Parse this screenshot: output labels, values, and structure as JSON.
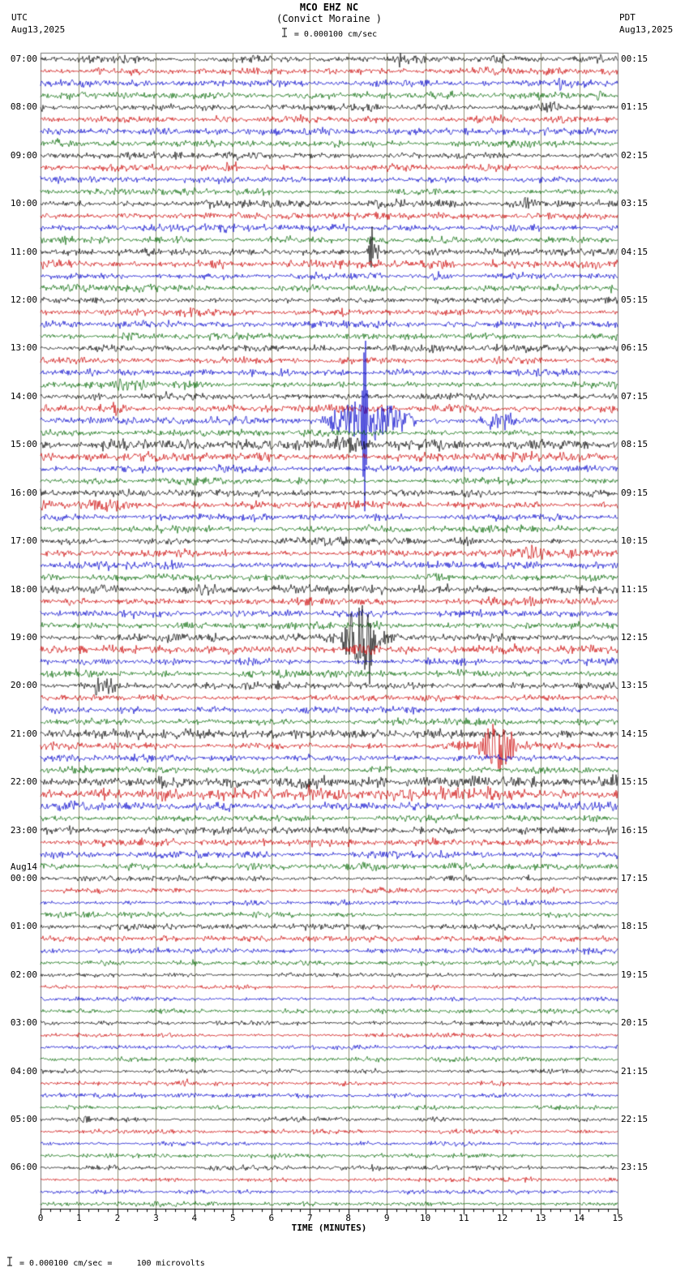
{
  "header": {
    "title": "MCO EHZ NC",
    "subtitle": "(Convict Moraine )",
    "left_tz": "UTC",
    "left_date": "Aug13,2025",
    "right_tz": "PDT",
    "right_date": "Aug13,2025",
    "scale_text": " = 0.000100 cm/sec"
  },
  "footer": {
    "text": " = 0.000100 cm/sec =     100 microvolts"
  },
  "chart_data": {
    "type": "line",
    "subtype": "helicorder-seismogram",
    "title": "MCO EHZ NC (Convict Moraine )",
    "xlabel": "TIME (MINUTES)",
    "x_range": [
      0,
      15
    ],
    "x_ticks": [
      "0",
      "1",
      "2",
      "3",
      "4",
      "5",
      "6",
      "7",
      "8",
      "9",
      "10",
      "11",
      "12",
      "13",
      "14",
      "15"
    ],
    "minutes_per_line": 15,
    "traces_per_hour": 4,
    "rows_total": 96,
    "trace_colors": [
      "#000000",
      "#cc0000",
      "#0000cc",
      "#006600"
    ],
    "grid_color": "#8f8f73",
    "axis_color": "#000000",
    "border_color": "#777777",
    "hours": [
      {
        "utc": "07:00",
        "pdt": "00:15"
      },
      {
        "utc": "08:00",
        "pdt": "01:15"
      },
      {
        "utc": "09:00",
        "pdt": "02:15"
      },
      {
        "utc": "10:00",
        "pdt": "03:15"
      },
      {
        "utc": "11:00",
        "pdt": "04:15"
      },
      {
        "utc": "12:00",
        "pdt": "05:15"
      },
      {
        "utc": "13:00",
        "pdt": "06:15"
      },
      {
        "utc": "14:00",
        "pdt": "07:15"
      },
      {
        "utc": "15:00",
        "pdt": "08:15"
      },
      {
        "utc": "16:00",
        "pdt": "09:15"
      },
      {
        "utc": "17:00",
        "pdt": "10:15"
      },
      {
        "utc": "18:00",
        "pdt": "11:15"
      },
      {
        "utc": "19:00",
        "pdt": "12:15"
      },
      {
        "utc": "20:00",
        "pdt": "13:15"
      },
      {
        "utc": "21:00",
        "pdt": "14:15"
      },
      {
        "utc": "22:00",
        "pdt": "15:15"
      },
      {
        "utc": "23:00",
        "pdt": "16:15"
      },
      {
        "utc": "00:00",
        "pdt": "17:15",
        "date": "Aug14"
      },
      {
        "utc": "01:00",
        "pdt": "18:15"
      },
      {
        "utc": "02:00",
        "pdt": "19:15"
      },
      {
        "utc": "03:00",
        "pdt": "20:15"
      },
      {
        "utc": "04:00",
        "pdt": "21:15"
      },
      {
        "utc": "05:00",
        "pdt": "22:15"
      },
      {
        "utc": "06:00",
        "pdt": "23:15"
      }
    ],
    "noise": {
      "default": 2.3,
      "night": 1.8,
      "night_start_row": 68,
      "late": 1.5,
      "late_start_row": 76,
      "overrides": {
        "17": 2.8,
        "32": 3.2,
        "33": 2.9,
        "44": 3.0,
        "45": 2.7,
        "49": 3.0,
        "56": 3.0,
        "60": 4.0,
        "61": 4.2,
        "62": 3.0
      }
    },
    "events": [
      {
        "row": 0,
        "t0": 1.45,
        "t1": 1.85,
        "amp": 6,
        "shape": "burst"
      },
      {
        "row": 0,
        "t0": 9.2,
        "t1": 9.45,
        "amp": 5,
        "shape": "burst"
      },
      {
        "row": 0,
        "t0": 11.6,
        "t1": 12.1,
        "amp": 6,
        "shape": "burst"
      },
      {
        "row": 1,
        "t0": 1.4,
        "t1": 1.8,
        "amp": 5,
        "shape": "burst"
      },
      {
        "row": 2,
        "t0": 1.4,
        "t1": 1.8,
        "amp": 4,
        "shape": "burst"
      },
      {
        "row": 2,
        "t0": 13.3,
        "t1": 13.7,
        "amp": 5,
        "shape": "burst"
      },
      {
        "row": 3,
        "t0": 14.4,
        "t1": 14.65,
        "amp": 7,
        "shape": "burst"
      },
      {
        "row": 4,
        "t0": 12.9,
        "t1": 13.6,
        "amp": 7,
        "shape": "burst"
      },
      {
        "row": 7,
        "t0": 0.15,
        "t1": 0.8,
        "amp": 5,
        "shape": "burst"
      },
      {
        "row": 8,
        "t0": 4.7,
        "t1": 5.1,
        "amp": 5,
        "shape": "burst"
      },
      {
        "row": 9,
        "t0": 4.7,
        "t1": 5.2,
        "amp": 6,
        "shape": "burst"
      },
      {
        "row": 12,
        "t0": 4.0,
        "t1": 4.6,
        "amp": 4,
        "shape": "burst"
      },
      {
        "row": 12,
        "t0": 8.4,
        "t1": 9.0,
        "amp": 4,
        "shape": "burst"
      },
      {
        "row": 12,
        "t0": 12.2,
        "t1": 13.0,
        "amp": 5,
        "shape": "burst"
      },
      {
        "row": 15,
        "t0": 0.2,
        "t1": 1.0,
        "amp": 4,
        "shape": "burst"
      },
      {
        "row": 16,
        "t0": 8.45,
        "t1": 8.85,
        "amp": 14,
        "shape": "burst"
      },
      {
        "row": 16,
        "t0": 8.55,
        "t1": 8.68,
        "amp": 24,
        "shape": "spike"
      },
      {
        "row": 17,
        "t0": 9.6,
        "t1": 10.9,
        "amp": 4,
        "shape": "burst"
      },
      {
        "row": 21,
        "t0": 7.7,
        "t1": 8.1,
        "amp": 5,
        "shape": "burst"
      },
      {
        "row": 23,
        "t0": 2.1,
        "t1": 2.7,
        "amp": 5,
        "shape": "burst"
      },
      {
        "row": 27,
        "t0": 1.9,
        "t1": 2.7,
        "amp": 6,
        "shape": "burst"
      },
      {
        "row": 29,
        "t0": 1.8,
        "t1": 2.3,
        "amp": 6,
        "shape": "burst"
      },
      {
        "row": 30,
        "t0": 7.3,
        "t1": 9.8,
        "amp": 24,
        "shape": "burst"
      },
      {
        "row": 30,
        "t0": 8.33,
        "t1": 8.5,
        "amp": 135,
        "shape": "spike"
      },
      {
        "row": 30,
        "t0": 11.35,
        "t1": 12.45,
        "amp": 11,
        "shape": "burst"
      },
      {
        "row": 32,
        "t0": 1.5,
        "t1": 2.35,
        "amp": 9,
        "shape": "burst"
      },
      {
        "row": 32,
        "t0": 7.3,
        "t1": 8.75,
        "amp": 9,
        "shape": "burst"
      },
      {
        "row": 36,
        "t0": 11.3,
        "t1": 11.6,
        "amp": 4,
        "shape": "burst"
      },
      {
        "row": 37,
        "t0": 0.85,
        "t1": 2.5,
        "amp": 7,
        "shape": "burst"
      },
      {
        "row": 37,
        "t0": 2.85,
        "t1": 3.15,
        "amp": 5,
        "shape": "burst"
      },
      {
        "row": 41,
        "t0": 12.2,
        "t1": 13.3,
        "amp": 9,
        "shape": "burst"
      },
      {
        "row": 41,
        "t0": 13.5,
        "t1": 14.0,
        "amp": 5,
        "shape": "burst"
      },
      {
        "row": 42,
        "t0": 3.3,
        "t1": 3.8,
        "amp": 4,
        "shape": "burst"
      },
      {
        "row": 48,
        "t0": 7.2,
        "t1": 7.8,
        "amp": 5,
        "shape": "burst"
      },
      {
        "row": 48,
        "t0": 7.8,
        "t1": 8.85,
        "amp": 40,
        "shape": "burst"
      },
      {
        "row": 48,
        "t0": 8.5,
        "t1": 8.7,
        "amp": 52,
        "shape": "spike"
      },
      {
        "row": 48,
        "t0": 8.85,
        "t1": 10.6,
        "amp": 8,
        "shape": "decay"
      },
      {
        "row": 49,
        "t0": 7.9,
        "t1": 9.0,
        "amp": 6,
        "shape": "burst"
      },
      {
        "row": 52,
        "t0": 1.3,
        "t1": 2.0,
        "amp": 12,
        "shape": "burst"
      },
      {
        "row": 52,
        "t0": 6.05,
        "t1": 6.3,
        "amp": 6,
        "shape": "spike"
      },
      {
        "row": 57,
        "t0": 10.4,
        "t1": 11.3,
        "amp": 6,
        "shape": "burst"
      },
      {
        "row": 57,
        "t0": 11.3,
        "t1": 12.45,
        "amp": 27,
        "shape": "burst"
      },
      {
        "row": 66,
        "t0": 10.1,
        "t1": 10.5,
        "amp": 5,
        "shape": "burst"
      },
      {
        "row": 85,
        "t0": 3.5,
        "t1": 4.1,
        "amp": 4,
        "shape": "burst"
      },
      {
        "row": 88,
        "t0": 0.85,
        "t1": 1.35,
        "amp": 4,
        "shape": "burst"
      }
    ]
  }
}
